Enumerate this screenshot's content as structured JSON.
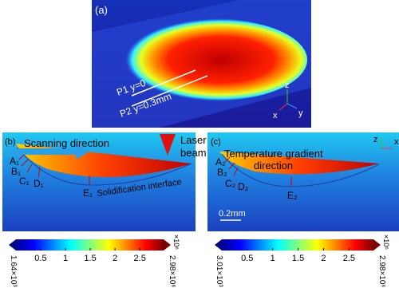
{
  "panel_a": {
    "label": "(a)",
    "lines": [
      "P1  y=0",
      "P2  y=0.3mm"
    ],
    "axes": [
      "z",
      "x",
      "y"
    ]
  },
  "panel_b": {
    "label": "(b)",
    "arrow_text": "Scanning direction",
    "laser": [
      "Laser",
      "beam"
    ],
    "points": [
      "A₁",
      "B₁",
      "C₁",
      "D₁",
      "E₁"
    ],
    "interface": "Solidification interface"
  },
  "panel_c": {
    "label": "(c)",
    "gradient": [
      "Temperature gradient",
      "direction"
    ],
    "points": [
      "A₂",
      "B₂",
      "C₂",
      "D₂",
      "E₂"
    ],
    "scale": "0.2mm",
    "axes": [
      "z",
      "x"
    ]
  },
  "colorbars": [
    {
      "min_label": "1.64×10³",
      "max_label": "2.98×10⁶",
      "multiplier": "×10⁶",
      "lim": [
        0.00164,
        2.98
      ],
      "ticks": [
        0.5,
        1,
        1.5,
        2,
        2.5
      ]
    },
    {
      "min_label": "3.01×10³",
      "max_label": "2.98×10⁶",
      "multiplier": "×10⁶",
      "lim": [
        0.00301,
        2.98
      ],
      "ticks": [
        0.5,
        1,
        1.5,
        2,
        2.5
      ]
    }
  ]
}
